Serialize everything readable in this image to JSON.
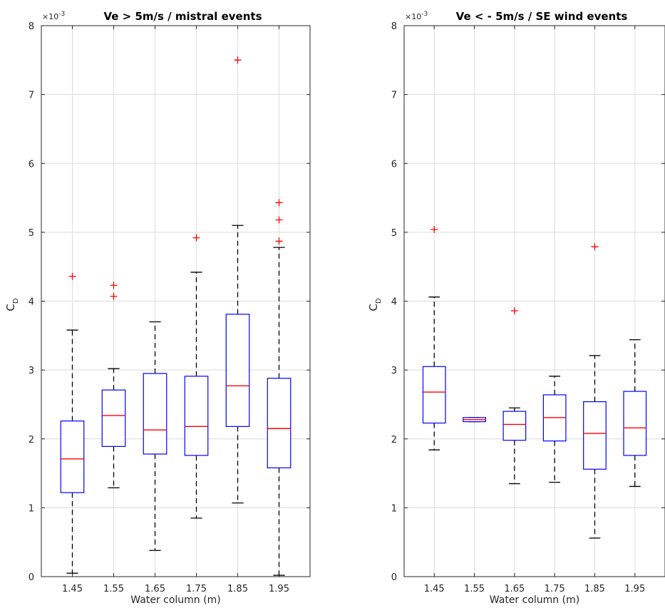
{
  "chart_data": [
    {
      "type": "boxplot",
      "title": "Ve > 5m/s / mistral events",
      "xlabel": "Water column (m)",
      "ylabel_main": "C",
      "ylabel_sub": "D",
      "y_exponent": "×10",
      "y_exponent_power": "-3",
      "ylim": [
        0,
        8
      ],
      "yticks": [
        "0",
        "1",
        "2",
        "3",
        "4",
        "5",
        "6",
        "7",
        "8"
      ],
      "grid": true,
      "categories": [
        "1.45",
        "1.55",
        "1.65",
        "1.75",
        "1.85",
        "1.95"
      ],
      "boxes": [
        {
          "whisker_low": 0.05,
          "q1": 1.22,
          "median": 1.71,
          "q3": 2.26,
          "whisker_high": 3.58,
          "outliers": [
            4.36
          ]
        },
        {
          "whisker_low": 1.29,
          "q1": 1.89,
          "median": 2.34,
          "q3": 2.71,
          "whisker_high": 3.02,
          "outliers": [
            4.07,
            4.23
          ]
        },
        {
          "whisker_low": 0.38,
          "q1": 1.78,
          "median": 2.13,
          "q3": 2.95,
          "whisker_high": 3.7,
          "outliers": []
        },
        {
          "whisker_low": 0.85,
          "q1": 1.76,
          "median": 2.18,
          "q3": 2.91,
          "whisker_high": 4.42,
          "outliers": [
            4.92
          ]
        },
        {
          "whisker_low": 1.07,
          "q1": 2.18,
          "median": 2.77,
          "q3": 3.81,
          "whisker_high": 5.1,
          "outliers": [
            7.5
          ]
        },
        {
          "whisker_low": 0.02,
          "q1": 1.58,
          "median": 2.15,
          "q3": 2.88,
          "whisker_high": 4.78,
          "outliers": [
            4.87,
            5.18,
            5.43
          ]
        }
      ]
    },
    {
      "type": "boxplot",
      "title": "Ve < - 5m/s / SE wind events",
      "xlabel": "Water column (m)",
      "ylabel_main": "C",
      "ylabel_sub": "D",
      "y_exponent": "×10",
      "y_exponent_power": "-3",
      "ylim": [
        0,
        8
      ],
      "yticks": [
        "0",
        "1",
        "2",
        "3",
        "4",
        "5",
        "6",
        "7",
        "8"
      ],
      "grid": true,
      "categories": [
        "1.45",
        "1.55",
        "1.65",
        "1.75",
        "1.85",
        "1.95"
      ],
      "boxes": [
        {
          "whisker_low": 1.84,
          "q1": 2.23,
          "median": 2.68,
          "q3": 3.05,
          "whisker_high": 4.06,
          "outliers": [
            5.04
          ]
        },
        {
          "whisker_low": 2.25,
          "q1": 2.25,
          "median": 2.28,
          "q3": 2.31,
          "whisker_high": 2.31,
          "outliers": []
        },
        {
          "whisker_low": 1.35,
          "q1": 1.98,
          "median": 2.21,
          "q3": 2.4,
          "whisker_high": 2.45,
          "outliers": [
            3.86
          ]
        },
        {
          "whisker_low": 1.37,
          "q1": 1.97,
          "median": 2.31,
          "q3": 2.64,
          "whisker_high": 2.91,
          "outliers": []
        },
        {
          "whisker_low": 0.56,
          "q1": 1.56,
          "median": 2.08,
          "q3": 2.54,
          "whisker_high": 3.21,
          "outliers": [
            4.79
          ]
        },
        {
          "whisker_low": 1.31,
          "q1": 1.76,
          "median": 2.16,
          "q3": 2.69,
          "whisker_high": 3.44,
          "outliers": []
        }
      ]
    }
  ],
  "colors": {
    "box": "#0000ff",
    "median": "#ff0000",
    "outlier": "#ff0000",
    "whisker": "#000000",
    "grid": "#dcdcdc",
    "axis": "#262626"
  }
}
